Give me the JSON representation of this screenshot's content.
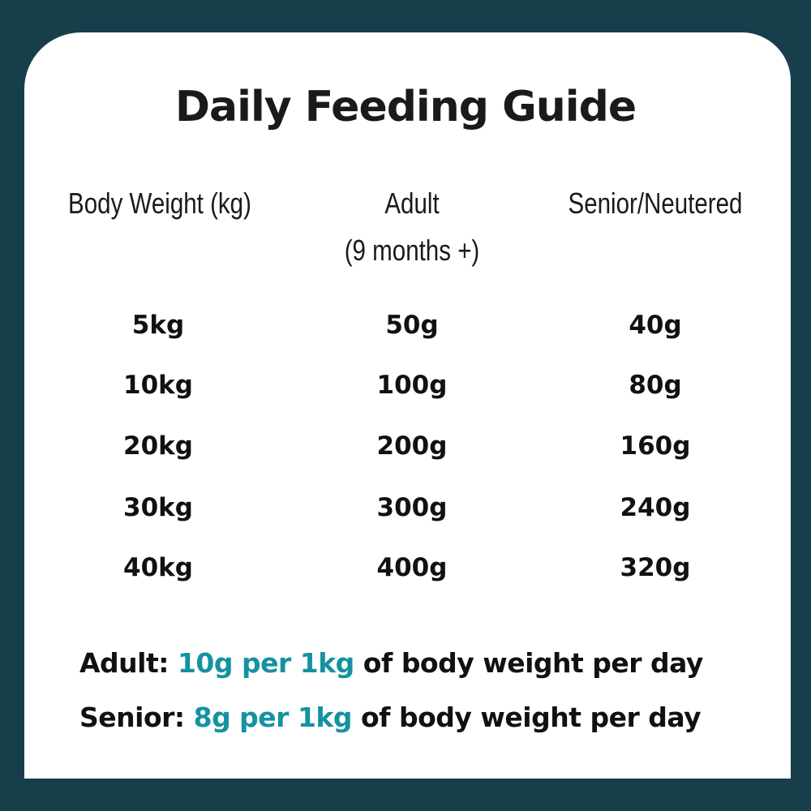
{
  "title": "Daily Feeding Guide",
  "colors": {
    "background": "#173e4b",
    "card": "#ffffff",
    "accent": "#1592a0"
  },
  "table": {
    "headers": [
      {
        "line1": "Body Weight (kg)",
        "line2": ""
      },
      {
        "line1": "Adult",
        "line2": "(9 months +)"
      },
      {
        "line1": "Senior/Neutered",
        "line2": ""
      }
    ],
    "rows": [
      [
        "5kg",
        "50g",
        "40g"
      ],
      [
        "10kg",
        "100g",
        "80g"
      ],
      [
        "20kg",
        "200g",
        "160g"
      ],
      [
        "30kg",
        "300g",
        "240g"
      ],
      [
        "40kg",
        "400g",
        "320g"
      ]
    ]
  },
  "notes": [
    {
      "label": "Adult:",
      "rate": "10g per 1kg",
      "rest": "of body weight per day"
    },
    {
      "label": "Senior:",
      "rate": "8g per 1kg",
      "rest": "of body weight per day"
    }
  ]
}
